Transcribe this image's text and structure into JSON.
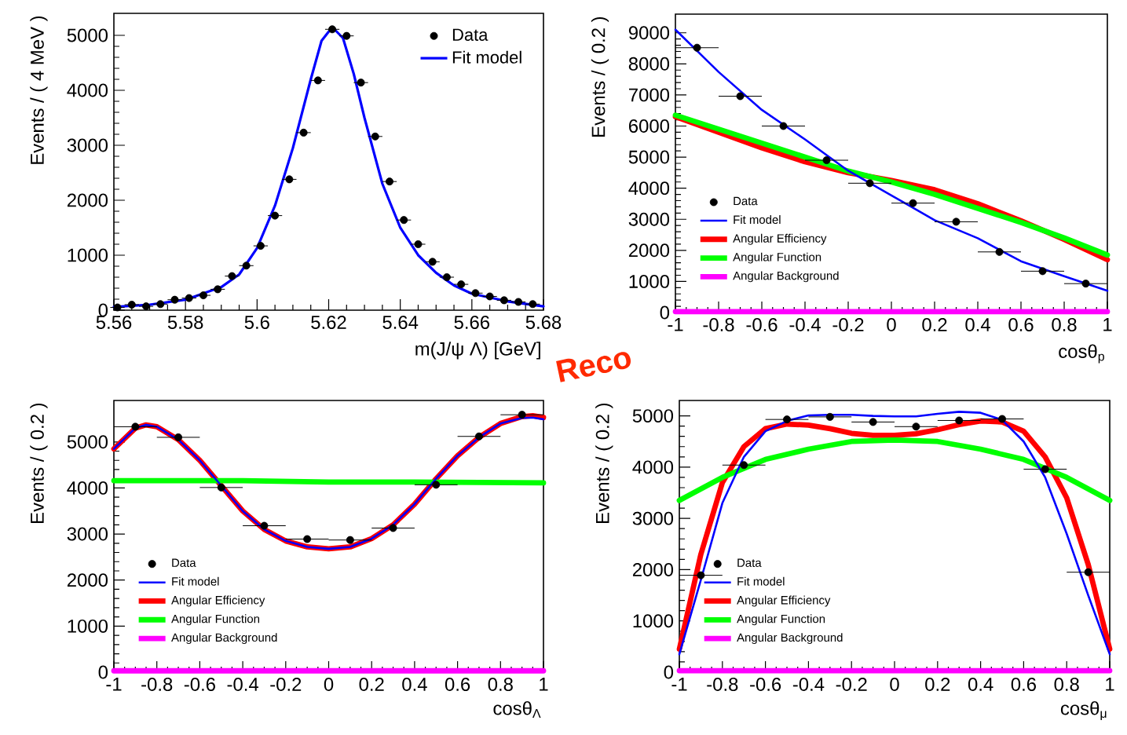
{
  "chart_data": [
    {
      "type": "line",
      "xlabel": "m(J/ψ Λ) [GeV]",
      "ylabel": "Events / ( 4 MeV )",
      "xlim": [
        5.56,
        5.68
      ],
      "xticks": [
        5.56,
        5.58,
        5.6,
        5.62,
        5.64,
        5.66,
        5.68
      ],
      "ylim": [
        0,
        5400
      ],
      "yticks": [
        0,
        1000,
        2000,
        3000,
        4000,
        5000
      ],
      "legend": "top right",
      "series": [
        {
          "name": "Data",
          "type": "scatter",
          "color": "#000000",
          "x": [
            5.561,
            5.565,
            5.569,
            5.573,
            5.577,
            5.581,
            5.585,
            5.589,
            5.593,
            5.597,
            5.601,
            5.605,
            5.609,
            5.613,
            5.617,
            5.621,
            5.625,
            5.629,
            5.633,
            5.637,
            5.641,
            5.645,
            5.649,
            5.653,
            5.657,
            5.661,
            5.665,
            5.669,
            5.673,
            5.677
          ],
          "values": [
            50,
            100,
            70,
            110,
            190,
            220,
            270,
            380,
            620,
            810,
            1170,
            1720,
            2380,
            3230,
            4180,
            5110,
            4990,
            4140,
            3160,
            2340,
            1640,
            1200,
            880,
            600,
            470,
            310,
            250,
            180,
            150,
            110
          ],
          "xerrors": [
            0.002,
            0.002,
            0.002,
            0.002,
            0.002,
            0.002,
            0.002,
            0.002,
            0.002,
            0.002,
            0.002,
            0.002,
            0.002,
            0.002,
            0.002,
            0.002,
            0.002,
            0.002,
            0.002,
            0.002,
            0.002,
            0.002,
            0.002,
            0.002,
            0.002,
            0.002,
            0.002,
            0.002,
            0.002,
            0.002
          ]
        },
        {
          "name": "Fit model",
          "type": "line",
          "color": "#0000ff",
          "x": [
            5.56,
            5.57,
            5.58,
            5.59,
            5.595,
            5.6,
            5.605,
            5.61,
            5.615,
            5.618,
            5.621,
            5.624,
            5.627,
            5.63,
            5.635,
            5.64,
            5.645,
            5.65,
            5.655,
            5.66,
            5.67,
            5.68
          ],
          "values": [
            60,
            100,
            190,
            420,
            650,
            1130,
            1900,
            2950,
            4200,
            4900,
            5150,
            4950,
            4300,
            3500,
            2300,
            1500,
            1000,
            680,
            450,
            300,
            160,
            70
          ]
        }
      ]
    },
    {
      "type": "line",
      "xlabel": "cosθ$_{p}$",
      "ylabel": "Events / ( 0.2 )",
      "xlim": [
        -1,
        1
      ],
      "xticks": [
        -1,
        -0.8,
        -0.6,
        -0.4,
        -0.2,
        0,
        0.2,
        0.4,
        0.6,
        0.8,
        1
      ],
      "ylim": [
        0,
        9600
      ],
      "yticks": [
        0,
        1000,
        2000,
        3000,
        4000,
        5000,
        6000,
        7000,
        8000,
        9000
      ],
      "legend": "bottom left",
      "series": [
        {
          "name": "Data",
          "type": "scatter",
          "color": "#000000",
          "x": [
            -0.9,
            -0.7,
            -0.5,
            -0.3,
            -0.1,
            0.1,
            0.3,
            0.5,
            0.7,
            0.9
          ],
          "values": [
            8520,
            6960,
            6000,
            4900,
            4160,
            3520,
            2920,
            1950,
            1330,
            930
          ],
          "xerrors": [
            0.1,
            0.1,
            0.1,
            0.1,
            0.1,
            0.1,
            0.1,
            0.1,
            0.1,
            0.1
          ]
        },
        {
          "name": "Fit model",
          "type": "line",
          "color": "#0000ff",
          "x": [
            -1,
            -0.8,
            -0.6,
            -0.4,
            -0.2,
            0,
            0.2,
            0.4,
            0.6,
            0.8,
            1
          ],
          "values": [
            9100,
            7740,
            6520,
            5570,
            4560,
            3770,
            2970,
            2390,
            1650,
            1170,
            700
          ]
        },
        {
          "name": "Angular Efficiency",
          "type": "line",
          "color": "#ff0000",
          "x": [
            -1,
            -0.8,
            -0.6,
            -0.4,
            -0.2,
            0,
            0.2,
            0.4,
            0.6,
            0.8,
            1
          ],
          "values": [
            6300,
            5800,
            5300,
            4850,
            4500,
            4250,
            3950,
            3500,
            2950,
            2350,
            1700
          ]
        },
        {
          "name": "Angular Function",
          "type": "line",
          "color": "#00ff00",
          "x": [
            -1,
            -0.8,
            -0.6,
            -0.4,
            -0.2,
            0,
            0.2,
            0.4,
            0.6,
            0.8,
            1
          ],
          "values": [
            6350,
            5900,
            5450,
            5000,
            4550,
            4200,
            3800,
            3350,
            2900,
            2400,
            1850
          ]
        },
        {
          "name": "Angular Background",
          "type": "line",
          "color": "#ff00ff",
          "x": [
            -1,
            1
          ],
          "values": [
            30,
            30
          ]
        }
      ]
    },
    {
      "type": "line",
      "xlabel": "cosθ$_{Λ}$",
      "ylabel": "Events / ( 0.2 )",
      "xlim": [
        -1,
        1
      ],
      "xticks": [
        -1,
        -0.8,
        -0.6,
        -0.4,
        -0.2,
        0,
        0.2,
        0.4,
        0.6,
        0.8,
        1
      ],
      "ylim": [
        0,
        5900
      ],
      "yticks": [
        0,
        1000,
        2000,
        3000,
        4000,
        5000
      ],
      "legend": "bottom left",
      "series": [
        {
          "name": "Data",
          "type": "scatter",
          "color": "#000000",
          "x": [
            -0.9,
            -0.7,
            -0.5,
            -0.3,
            -0.1,
            0.1,
            0.3,
            0.5,
            0.7,
            0.9
          ],
          "values": [
            5330,
            5100,
            4010,
            3180,
            2890,
            2870,
            3130,
            4070,
            5120,
            5590
          ],
          "xerrors": [
            0.1,
            0.1,
            0.1,
            0.1,
            0.1,
            0.1,
            0.1,
            0.1,
            0.1,
            0.1
          ]
        },
        {
          "name": "Fit model",
          "type": "line",
          "color": "#0000ff",
          "x": [
            -1,
            -0.9,
            -0.85,
            -0.8,
            -0.7,
            -0.6,
            -0.5,
            -0.4,
            -0.3,
            -0.2,
            -0.1,
            0,
            0.1,
            0.2,
            0.3,
            0.4,
            0.5,
            0.6,
            0.7,
            0.8,
            0.9,
            0.95,
            1
          ],
          "values": [
            4850,
            5300,
            5370,
            5330,
            5050,
            4600,
            4050,
            3500,
            3100,
            2850,
            2720,
            2680,
            2720,
            2900,
            3200,
            3650,
            4200,
            4700,
            5100,
            5400,
            5520,
            5530,
            5490
          ]
        },
        {
          "name": "Angular Efficiency",
          "type": "line",
          "color": "#ff0000",
          "x": [
            -1,
            -0.9,
            -0.85,
            -0.8,
            -0.7,
            -0.6,
            -0.5,
            -0.4,
            -0.3,
            -0.2,
            -0.1,
            0,
            0.1,
            0.2,
            0.3,
            0.4,
            0.5,
            0.6,
            0.7,
            0.8,
            0.9,
            0.95,
            1
          ],
          "values": [
            4850,
            5300,
            5370,
            5330,
            5050,
            4600,
            4050,
            3500,
            3100,
            2850,
            2720,
            2680,
            2720,
            2900,
            3200,
            3650,
            4200,
            4700,
            5100,
            5400,
            5550,
            5570,
            5530
          ]
        },
        {
          "name": "Angular Function",
          "type": "line",
          "color": "#00ff00",
          "x": [
            -1,
            -0.4,
            0,
            0.4,
            1
          ],
          "values": [
            4160,
            4160,
            4130,
            4130,
            4110
          ]
        },
        {
          "name": "Angular Background",
          "type": "line",
          "color": "#ff00ff",
          "x": [
            -1,
            1
          ],
          "values": [
            30,
            30
          ]
        }
      ]
    },
    {
      "type": "line",
      "xlabel": "cosθ$_{μ}$",
      "ylabel": "Events / ( 0.2 )",
      "xlim": [
        -1,
        1
      ],
      "xticks": [
        -1,
        -0.8,
        -0.6,
        -0.4,
        -0.2,
        0,
        0.2,
        0.4,
        0.6,
        0.8,
        1
      ],
      "ylim": [
        0,
        5300
      ],
      "yticks": [
        0,
        1000,
        2000,
        3000,
        4000,
        5000
      ],
      "legend": "bottom left",
      "series": [
        {
          "name": "Data",
          "type": "scatter",
          "color": "#000000",
          "x": [
            -0.9,
            -0.7,
            -0.5,
            -0.3,
            -0.1,
            0.1,
            0.3,
            0.5,
            0.7,
            0.9
          ],
          "values": [
            1890,
            4040,
            4930,
            4980,
            4880,
            4790,
            4910,
            4940,
            3960,
            1950
          ],
          "xerrors": [
            0.1,
            0.1,
            0.1,
            0.1,
            0.1,
            0.1,
            0.1,
            0.1,
            0.1,
            0.1
          ]
        },
        {
          "name": "Fit model",
          "type": "line",
          "color": "#0000ff",
          "x": [
            -1,
            -0.9,
            -0.8,
            -0.7,
            -0.6,
            -0.5,
            -0.4,
            -0.3,
            -0.2,
            -0.1,
            0,
            0.1,
            0.2,
            0.3,
            0.4,
            0.5,
            0.6,
            0.7,
            0.8,
            0.9,
            1
          ],
          "values": [
            350,
            1800,
            3300,
            4200,
            4700,
            4900,
            5010,
            5020,
            5020,
            5000,
            4990,
            4990,
            5040,
            5080,
            5060,
            4920,
            4500,
            3800,
            2700,
            1500,
            350
          ]
        },
        {
          "name": "Angular Efficiency",
          "type": "line",
          "color": "#ff0000",
          "x": [
            -1,
            -0.9,
            -0.8,
            -0.7,
            -0.6,
            -0.5,
            -0.4,
            -0.3,
            -0.2,
            -0.1,
            0,
            0.1,
            0.2,
            0.3,
            0.4,
            0.5,
            0.6,
            0.7,
            0.8,
            0.9,
            1
          ],
          "values": [
            450,
            2300,
            3700,
            4400,
            4750,
            4840,
            4820,
            4750,
            4660,
            4620,
            4620,
            4650,
            4730,
            4830,
            4900,
            4880,
            4700,
            4200,
            3400,
            2100,
            450
          ]
        },
        {
          "name": "Angular Function",
          "type": "line",
          "color": "#00ff00",
          "x": [
            -1,
            -0.8,
            -0.6,
            -0.4,
            -0.2,
            0,
            0.2,
            0.4,
            0.6,
            0.8,
            1
          ],
          "values": [
            3350,
            3800,
            4150,
            4350,
            4500,
            4530,
            4500,
            4350,
            4150,
            3800,
            3350
          ]
        },
        {
          "name": "Angular Background",
          "type": "line",
          "color": "#ff00ff",
          "x": [
            -1,
            1
          ],
          "values": [
            30,
            30
          ]
        }
      ]
    },
    {
      "type": "other",
      "annotations": [
        "Reco"
      ]
    }
  ]
}
